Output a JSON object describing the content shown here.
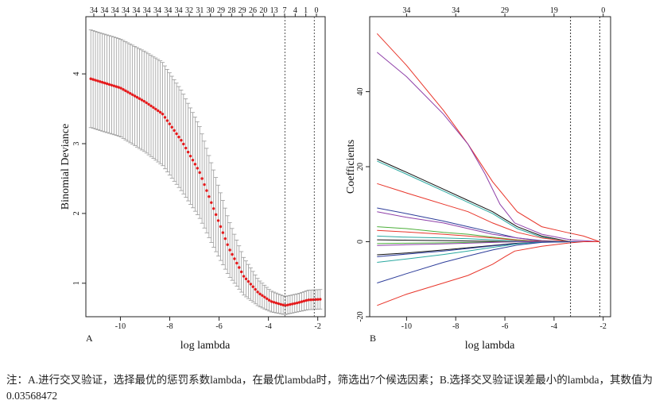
{
  "chart_data": [
    {
      "panel_label": "A",
      "type": "line",
      "xlabel": "log lambda",
      "ylabel": "Binomial Deviance",
      "xlim": [
        -11.4,
        -1.7
      ],
      "ylim": [
        0.52,
        4.82
      ],
      "xticks": [
        -10,
        -8,
        -6,
        -4,
        -2
      ],
      "yticks": [
        1,
        2,
        3,
        4
      ],
      "top_ticks": [
        "34",
        "34",
        "34",
        "34",
        "34",
        "34",
        "34",
        "34",
        "34",
        "32",
        "31",
        "30",
        "29",
        "28",
        "29",
        "26",
        "20",
        "13",
        "7",
        "4",
        "1",
        "0"
      ],
      "vlines": [
        -3.33,
        -2.14
      ],
      "curve_points": [
        {
          "x": -11.2,
          "y": 3.93,
          "se": 0.7
        },
        {
          "x": -10.0,
          "y": 3.8,
          "se": 0.7
        },
        {
          "x": -9.0,
          "y": 3.6,
          "se": 0.72
        },
        {
          "x": -8.3,
          "y": 3.43,
          "se": 0.74
        },
        {
          "x": -7.5,
          "y": 3.03,
          "se": 0.72
        },
        {
          "x": -6.8,
          "y": 2.6,
          "se": 0.66
        },
        {
          "x": -6.2,
          "y": 2.05,
          "se": 0.55
        },
        {
          "x": -5.6,
          "y": 1.5,
          "se": 0.4
        },
        {
          "x": -5.0,
          "y": 1.1,
          "se": 0.27
        },
        {
          "x": -4.4,
          "y": 0.86,
          "se": 0.19
        },
        {
          "x": -3.9,
          "y": 0.74,
          "se": 0.15
        },
        {
          "x": -3.33,
          "y": 0.68,
          "se": 0.13
        },
        {
          "x": -2.8,
          "y": 0.72,
          "se": 0.13
        },
        {
          "x": -2.4,
          "y": 0.76,
          "se": 0.14
        },
        {
          "x": -1.9,
          "y": 0.77,
          "se": 0.14
        }
      ]
    },
    {
      "panel_label": "B",
      "type": "line",
      "xlabel": "log lambda",
      "ylabel": "Coefficients",
      "xlim": [
        -11.5,
        -1.7
      ],
      "ylim": [
        -20,
        60
      ],
      "xticks": [
        -10,
        -8,
        -6,
        -4,
        -2
      ],
      "yticks": [
        -20,
        0,
        20,
        40
      ],
      "top_ticks": [
        "34",
        "34",
        "29",
        "19",
        "0"
      ],
      "top_tick_x": [
        -10,
        -8,
        -6,
        -4,
        -2
      ],
      "vlines": [
        -3.33,
        -2.14
      ],
      "series": [
        {
          "color": "#e8352a",
          "points": [
            [
              -11.2,
              55.5
            ],
            [
              -10,
              47
            ],
            [
              -8.5,
              35
            ],
            [
              -7.5,
              26
            ],
            [
              -6.5,
              16
            ],
            [
              -5.5,
              8
            ],
            [
              -4.5,
              4
            ],
            [
              -3.5,
              2.5
            ],
            [
              -2.8,
              1.5
            ],
            [
              -2.14,
              0
            ]
          ]
        },
        {
          "color": "#8e3fa8",
          "points": [
            [
              -11.2,
              50.5
            ],
            [
              -10,
              44
            ],
            [
              -8.5,
              34
            ],
            [
              -7.5,
              26
            ],
            [
              -6.8,
              18
            ],
            [
              -6.2,
              10
            ],
            [
              -5.6,
              5
            ],
            [
              -4.5,
              2
            ],
            [
              -3.33,
              0.5
            ],
            [
              -2.14,
              0
            ]
          ]
        },
        {
          "color": "#111111",
          "points": [
            [
              -11.2,
              22
            ],
            [
              -10,
              18.5
            ],
            [
              -8.5,
              14
            ],
            [
              -7.5,
              11
            ],
            [
              -6.5,
              8
            ],
            [
              -5.5,
              4
            ],
            [
              -4.5,
              1.5
            ],
            [
              -3.33,
              0
            ],
            [
              -2.14,
              0
            ]
          ]
        },
        {
          "color": "#2aa8a0",
          "points": [
            [
              -11.2,
              21.5
            ],
            [
              -10,
              18
            ],
            [
              -8.5,
              13.5
            ],
            [
              -7.5,
              10.5
            ],
            [
              -6.5,
              7.5
            ],
            [
              -5.5,
              3.5
            ],
            [
              -4.5,
              1.2
            ],
            [
              -3.33,
              0
            ],
            [
              -2.14,
              0
            ]
          ]
        },
        {
          "color": "#e8352a",
          "points": [
            [
              -11.2,
              15.5
            ],
            [
              -10,
              13
            ],
            [
              -8.5,
              10
            ],
            [
              -7.5,
              8
            ],
            [
              -6.5,
              5
            ],
            [
              -5.5,
              2.5
            ],
            [
              -4.5,
              1
            ],
            [
              -3.33,
              0
            ],
            [
              -2.14,
              0
            ]
          ]
        },
        {
          "color": "#2d3d9a",
          "points": [
            [
              -11.2,
              9
            ],
            [
              -10,
              7.5
            ],
            [
              -8.5,
              5.5
            ],
            [
              -7.5,
              4
            ],
            [
              -6.5,
              2.5
            ],
            [
              -5.5,
              1
            ],
            [
              -4.5,
              0.3
            ],
            [
              -3.33,
              0
            ],
            [
              -2.14,
              0
            ]
          ]
        },
        {
          "color": "#8e3fa8",
          "points": [
            [
              -11.2,
              8
            ],
            [
              -10,
              6.5
            ],
            [
              -8.5,
              5
            ],
            [
              -7.5,
              3.5
            ],
            [
              -6.5,
              2
            ],
            [
              -5.5,
              1
            ],
            [
              -4.5,
              0.2
            ],
            [
              -3.33,
              0
            ],
            [
              -2.14,
              0
            ]
          ]
        },
        {
          "color": "#4caf3a",
          "points": [
            [
              -11.2,
              4
            ],
            [
              -10,
              3.5
            ],
            [
              -8.5,
              2.5
            ],
            [
              -7.5,
              2
            ],
            [
              -6.5,
              1.2
            ],
            [
              -5.5,
              0.5
            ],
            [
              -4.5,
              0.1
            ],
            [
              -3.33,
              0
            ],
            [
              -2.14,
              0
            ]
          ]
        },
        {
          "color": "#e8352a",
          "points": [
            [
              -11.2,
              3
            ],
            [
              -10,
              2.6
            ],
            [
              -8.5,
              2
            ],
            [
              -7.5,
              1.5
            ],
            [
              -6.5,
              1
            ],
            [
              -5.5,
              0.4
            ],
            [
              -4.5,
              0.1
            ],
            [
              -3.33,
              0
            ],
            [
              -2.14,
              0
            ]
          ]
        },
        {
          "color": "#2aa8a0",
          "points": [
            [
              -11.2,
              1.5
            ],
            [
              -10,
              1.2
            ],
            [
              -8.5,
              1
            ],
            [
              -7.5,
              0.8
            ],
            [
              -6.5,
              0.5
            ],
            [
              -5.5,
              0.2
            ],
            [
              -4.5,
              0
            ],
            [
              -3.33,
              0
            ],
            [
              -2.14,
              0
            ]
          ]
        },
        {
          "color": "#111111",
          "points": [
            [
              -11.2,
              0.5
            ],
            [
              -10,
              0.4
            ],
            [
              -8.5,
              0.3
            ],
            [
              -7.5,
              0.2
            ],
            [
              -6.5,
              0.1
            ],
            [
              -5.5,
              0
            ],
            [
              -3.33,
              0
            ],
            [
              -2.14,
              0
            ]
          ]
        },
        {
          "color": "#4caf3a",
          "points": [
            [
              -11.2,
              -0.5
            ],
            [
              -10,
              -0.4
            ],
            [
              -8.5,
              -0.3
            ],
            [
              -7.5,
              -0.2
            ],
            [
              -6.5,
              -0.1
            ],
            [
              -5.5,
              0
            ],
            [
              -3.33,
              0
            ],
            [
              -2.14,
              0
            ]
          ]
        },
        {
          "color": "#8e3fa8",
          "points": [
            [
              -11.2,
              -1
            ],
            [
              -10,
              -0.8
            ],
            [
              -8.5,
              -0.6
            ],
            [
              -7.5,
              -0.4
            ],
            [
              -6.5,
              -0.2
            ],
            [
              -5.5,
              0
            ],
            [
              -3.33,
              0
            ],
            [
              -2.14,
              0
            ]
          ]
        },
        {
          "color": "#111111",
          "points": [
            [
              -11.2,
              -3.5
            ],
            [
              -10,
              -3
            ],
            [
              -8.5,
              -2.2
            ],
            [
              -7.5,
              -1.6
            ],
            [
              -6.5,
              -1
            ],
            [
              -5.5,
              -0.4
            ],
            [
              -4.5,
              -0.1
            ],
            [
              -3.33,
              0
            ],
            [
              -2.14,
              0
            ]
          ]
        },
        {
          "color": "#2d3d9a",
          "points": [
            [
              -11.2,
              -4
            ],
            [
              -10,
              -3.3
            ],
            [
              -8.5,
              -2.5
            ],
            [
              -7.5,
              -1.8
            ],
            [
              -6.5,
              -1.1
            ],
            [
              -5.5,
              -0.5
            ],
            [
              -4.5,
              -0.1
            ],
            [
              -3.33,
              0
            ],
            [
              -2.14,
              0
            ]
          ]
        },
        {
          "color": "#2aa8a0",
          "points": [
            [
              -11.2,
              -5.5
            ],
            [
              -10,
              -4.6
            ],
            [
              -8.5,
              -3.4
            ],
            [
              -7.5,
              -2.5
            ],
            [
              -6.5,
              -1.5
            ],
            [
              -5.5,
              -0.6
            ],
            [
              -4.5,
              -0.1
            ],
            [
              -3.33,
              0
            ],
            [
              -2.14,
              0
            ]
          ]
        },
        {
          "color": "#2d3d9a",
          "points": [
            [
              -11.2,
              -11
            ],
            [
              -10,
              -8.5
            ],
            [
              -8.5,
              -5.5
            ],
            [
              -7.5,
              -3.8
            ],
            [
              -6.5,
              -2.2
            ],
            [
              -5.5,
              -0.9
            ],
            [
              -4.5,
              -0.2
            ],
            [
              -3.33,
              0
            ],
            [
              -2.14,
              0
            ]
          ]
        },
        {
          "color": "#e8352a",
          "points": [
            [
              -11.2,
              -17
            ],
            [
              -10,
              -14
            ],
            [
              -8.5,
              -11
            ],
            [
              -7.5,
              -9
            ],
            [
              -6.5,
              -6
            ],
            [
              -6,
              -4
            ],
            [
              -5.6,
              -2.5
            ],
            [
              -4.5,
              -1.2
            ],
            [
              -3.33,
              -0.3
            ],
            [
              -2.8,
              0
            ],
            [
              -2.14,
              0
            ]
          ]
        }
      ]
    }
  ],
  "caption": {
    "text": "注：A.进行交叉验证，选择最优的惩罚系数lambda，在最优lambda时，筛选出7个候选因素；B.选择交叉验证误差最小的lambda，其数值为0.03568472"
  }
}
